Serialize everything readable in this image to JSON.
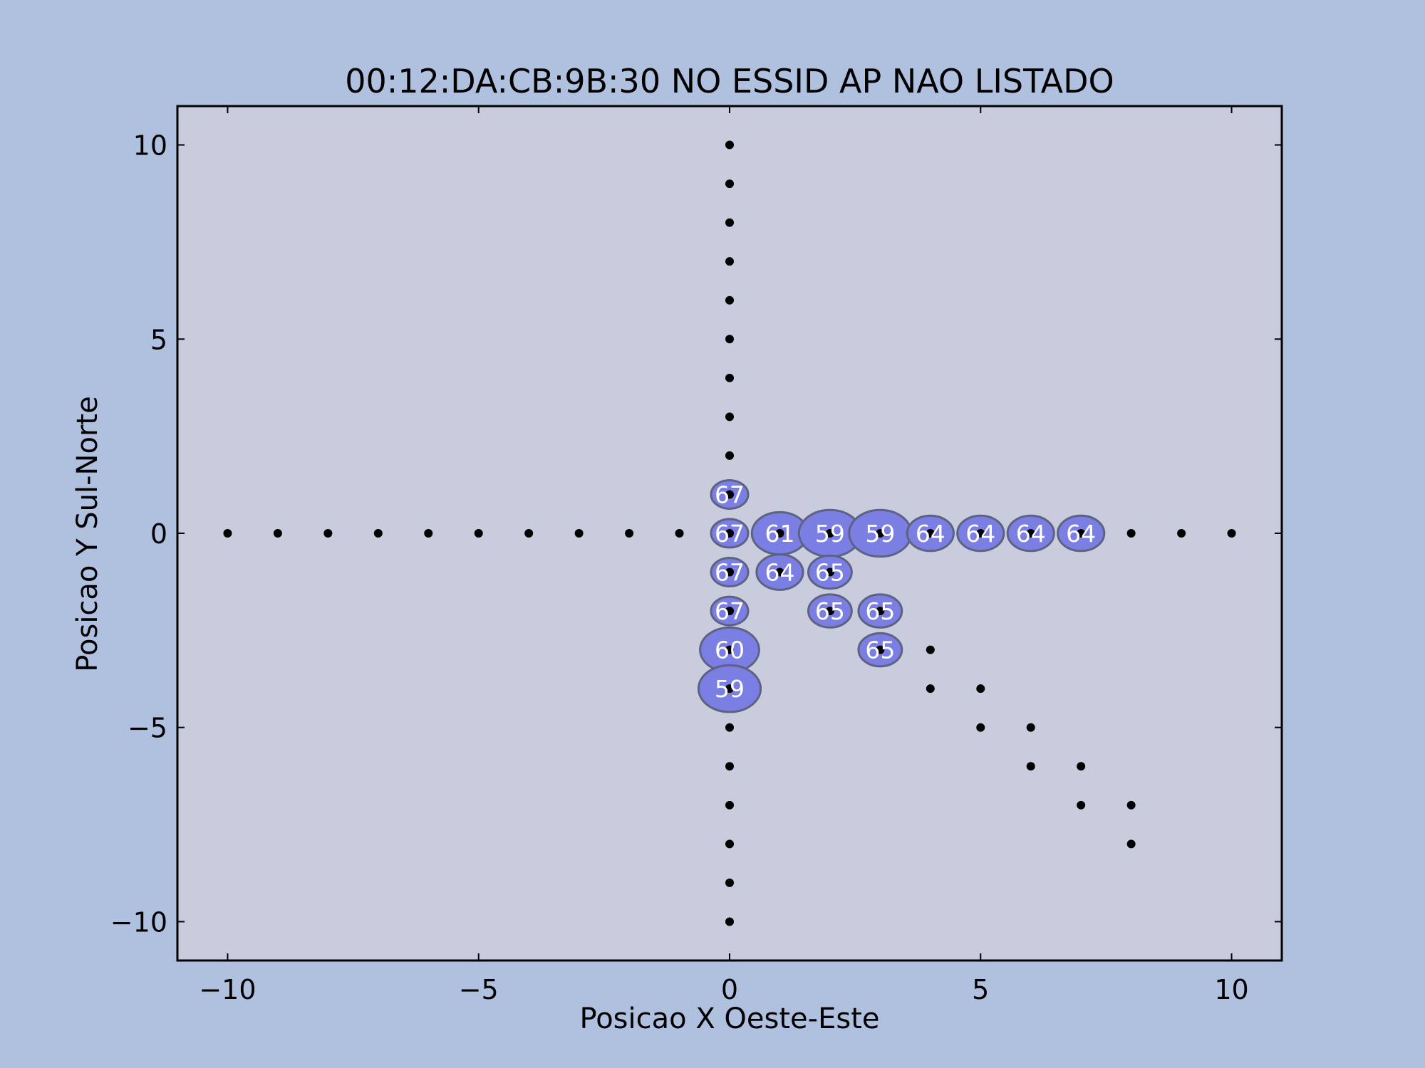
{
  "chart_data": {
    "type": "scatter",
    "title": "00:12:DA:CB:9B:30 NO ESSID AP NAO LISTADO",
    "xlabel": "Posicao X Oeste-Este",
    "ylabel": "Posicao Y Sul-Norte",
    "xlim": [
      -11,
      11
    ],
    "ylim": [
      -11,
      11
    ],
    "xticks": [
      -10,
      -5,
      0,
      5,
      10
    ],
    "yticks": [
      -10,
      -5,
      0,
      5,
      10
    ],
    "xtick_labels": [
      "−10",
      "−5",
      "0",
      "5",
      "10"
    ],
    "ytick_labels": [
      "−10",
      "−5",
      "0",
      "5",
      "10"
    ],
    "grid": false,
    "measurement_points": [
      [
        -10,
        0
      ],
      [
        -9,
        0
      ],
      [
        -8,
        0
      ],
      [
        -7,
        0
      ],
      [
        -6,
        0
      ],
      [
        -5,
        0
      ],
      [
        -4,
        0
      ],
      [
        -3,
        0
      ],
      [
        -2,
        0
      ],
      [
        -1,
        0
      ],
      [
        0,
        0
      ],
      [
        1,
        0
      ],
      [
        2,
        0
      ],
      [
        3,
        0
      ],
      [
        4,
        0
      ],
      [
        5,
        0
      ],
      [
        6,
        0
      ],
      [
        7,
        0
      ],
      [
        8,
        0
      ],
      [
        9,
        0
      ],
      [
        10,
        0
      ],
      [
        0,
        10
      ],
      [
        0,
        9
      ],
      [
        0,
        8
      ],
      [
        0,
        7
      ],
      [
        0,
        6
      ],
      [
        0,
        5
      ],
      [
        0,
        4
      ],
      [
        0,
        3
      ],
      [
        0,
        2
      ],
      [
        0,
        1
      ],
      [
        0,
        -1
      ],
      [
        0,
        -2
      ],
      [
        0,
        -3
      ],
      [
        0,
        -4
      ],
      [
        0,
        -5
      ],
      [
        0,
        -6
      ],
      [
        0,
        -7
      ],
      [
        0,
        -8
      ],
      [
        0,
        -9
      ],
      [
        0,
        -10
      ],
      [
        1,
        -1
      ],
      [
        2,
        -1
      ],
      [
        2,
        -2
      ],
      [
        3,
        -2
      ],
      [
        3,
        -3
      ],
      [
        4,
        -3
      ],
      [
        4,
        -4
      ],
      [
        5,
        -4
      ],
      [
        5,
        -5
      ],
      [
        6,
        -5
      ],
      [
        6,
        -6
      ],
      [
        7,
        -6
      ],
      [
        7,
        -7
      ],
      [
        8,
        -7
      ],
      [
        8,
        -8
      ]
    ],
    "signal_points": [
      {
        "x": 0,
        "y": 1,
        "value": 67
      },
      {
        "x": 0,
        "y": 0,
        "value": 67
      },
      {
        "x": 1,
        "y": 0,
        "value": 61
      },
      {
        "x": 2,
        "y": 0,
        "value": 59
      },
      {
        "x": 3,
        "y": 0,
        "value": 59
      },
      {
        "x": 4,
        "y": 0,
        "value": 64
      },
      {
        "x": 5,
        "y": 0,
        "value": 64
      },
      {
        "x": 6,
        "y": 0,
        "value": 64
      },
      {
        "x": 7,
        "y": 0,
        "value": 64
      },
      {
        "x": 0,
        "y": -1,
        "value": 67
      },
      {
        "x": 1,
        "y": -1,
        "value": 64
      },
      {
        "x": 2,
        "y": -1,
        "value": 65
      },
      {
        "x": 0,
        "y": -2,
        "value": 67
      },
      {
        "x": 2,
        "y": -2,
        "value": 65
      },
      {
        "x": 3,
        "y": -2,
        "value": 65
      },
      {
        "x": 3,
        "y": -3,
        "value": 65
      },
      {
        "x": 0,
        "y": -3,
        "value": 60
      },
      {
        "x": 0,
        "y": -4,
        "value": 59
      }
    ],
    "colors": {
      "figure_background": "#b0c1e0",
      "axes_background": "#c8ccdc",
      "marker_fill": "#7b7fe4",
      "marker_edge": "#5d6282",
      "label_text": "#ffffff",
      "point": "#000000"
    }
  }
}
